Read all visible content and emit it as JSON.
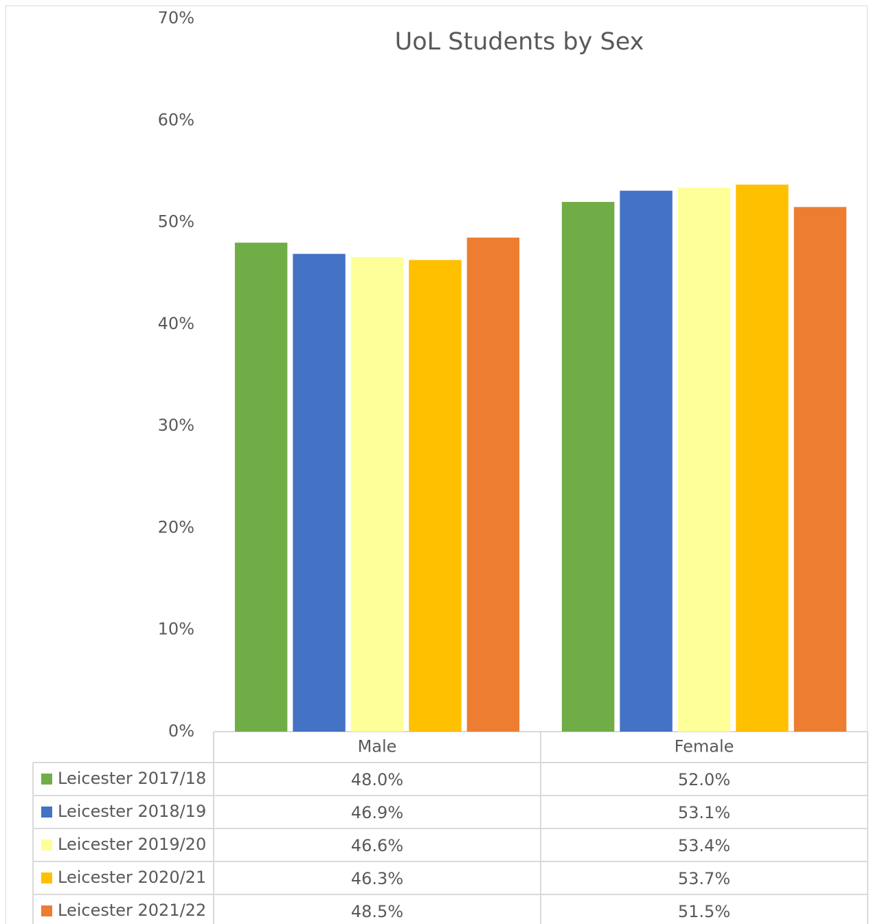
{
  "chart_data": {
    "type": "bar",
    "title": "UoL Students by Sex",
    "categories": [
      "Male",
      "Female"
    ],
    "series": [
      {
        "name": "Leicester 2017/18",
        "color": "#70ad47",
        "values": [
          48.0,
          52.0
        ],
        "value_labels": [
          "48.0%",
          "52.0%"
        ]
      },
      {
        "name": "Leicester 2018/19",
        "color": "#4472c4",
        "values": [
          46.9,
          53.1
        ],
        "value_labels": [
          "46.9%",
          "53.1%"
        ]
      },
      {
        "name": "Leicester 2019/20",
        "color": "#ffff99",
        "values": [
          46.6,
          53.4
        ],
        "value_labels": [
          "46.6%",
          "53.4%"
        ]
      },
      {
        "name": "Leicester 2020/21",
        "color": "#ffc000",
        "values": [
          46.3,
          53.7
        ],
        "value_labels": [
          "46.3%",
          "53.7%"
        ]
      },
      {
        "name": "Leicester 2021/22",
        "color": "#ed7d31",
        "values": [
          48.5,
          51.5
        ],
        "value_labels": [
          "48.5%",
          "51.5%"
        ]
      }
    ],
    "ylim": [
      0,
      70
    ],
    "yticks": [
      {
        "value": 0,
        "label": "0%"
      },
      {
        "value": 10,
        "label": "10%"
      },
      {
        "value": 20,
        "label": "20%"
      },
      {
        "value": 30,
        "label": "30%"
      },
      {
        "value": 40,
        "label": "40%"
      },
      {
        "value": 50,
        "label": "50%"
      },
      {
        "value": 60,
        "label": "60%"
      },
      {
        "value": 70,
        "label": "70%"
      }
    ],
    "grid": false
  }
}
